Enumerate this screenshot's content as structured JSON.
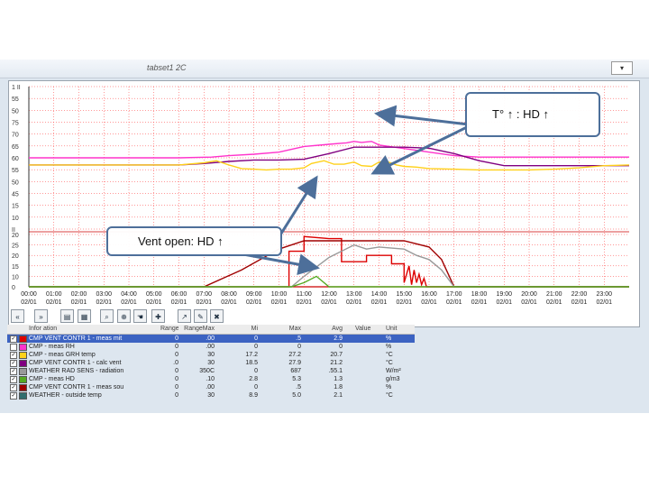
{
  "window": {
    "title": "tabset1 2C",
    "combo_label": ""
  },
  "callouts": {
    "top": "T° ↑ : HD ↑",
    "bottom": "Vent open: HD ↑"
  },
  "colors": {
    "magenta": "#ff33cc",
    "purple": "#800080",
    "yellow": "#ffd11a",
    "red": "#dd0000",
    "darkred": "#a00000",
    "gray": "#999999",
    "green": "#55aa22",
    "grid": "#ff3333",
    "accent": "#3c63c2"
  },
  "chart_data": {
    "type": "line",
    "upper_axis_labels": [
      "1 II",
      "55",
      "50",
      "75",
      "70",
      "65",
      "60",
      "55",
      "50",
      "45",
      "15",
      "10",
      "II"
    ],
    "lower_axis_labels": [
      "20",
      "25",
      "20",
      "15",
      "10",
      "0"
    ],
    "x_time_labels": [
      "00:00",
      "01:00",
      "02:00",
      "03:00",
      "04:00",
      "05:00",
      "06:00",
      "07:00",
      "08:00",
      "09:00",
      "10:00",
      "11:00",
      "12:00",
      "13:00",
      "14:00",
      "15:00",
      "16:00",
      "17:00",
      "18:00",
      "19:00",
      "20:00",
      "21:00",
      "22:00",
      "23:00"
    ],
    "x_date_labels": [
      "02/01",
      "02/01",
      "02/01",
      "02/01",
      "02/01",
      "02/01",
      "02/01",
      "02/01",
      "02/01",
      "02/01",
      "02/01",
      "02/01",
      "02/01",
      "02/01",
      "02/01",
      "02/01",
      "02/01",
      "02/01",
      "02/01",
      "02/01",
      "02/01",
      "02/01",
      "02/01",
      "02/01"
    ],
    "x_range": [
      0,
      24
    ],
    "series": [
      {
        "name": "CMP - meas RH",
        "color": "#ff33cc",
        "panel": "upper",
        "x": [
          0,
          3,
          6,
          7.3,
          8,
          9,
          10,
          11,
          12,
          12.7,
          13,
          13.3,
          13.7,
          14,
          15,
          16,
          17,
          18,
          19,
          20,
          21,
          22,
          23,
          24
        ],
        "y": [
          50,
          50,
          50,
          50.5,
          51.5,
          52.5,
          54,
          58,
          59.5,
          60.5,
          61.5,
          60.8,
          61.5,
          59,
          56.5,
          54,
          51.5,
          50.5,
          50.5,
          50.5,
          50.5,
          50.5,
          50.5,
          50.5
        ]
      },
      {
        "name": "CMP VENT CONTR 1 - calc vent",
        "color": "#800080",
        "panel": "upper",
        "x": [
          0,
          3,
          6,
          7,
          8,
          9,
          10,
          11,
          12,
          13,
          14,
          15,
          16,
          17,
          18,
          19,
          20,
          21,
          22,
          23,
          24
        ],
        "y": [
          45,
          45,
          45,
          46,
          47.5,
          48.5,
          48.5,
          49,
          53,
          57.5,
          57.5,
          57.5,
          56.8,
          53,
          48,
          44.5,
          44.5,
          44.5,
          44.5,
          44.5,
          44.5
        ]
      },
      {
        "name": "CMP - meas GRH temp",
        "color": "#ffd11a",
        "panel": "upper",
        "x": [
          0,
          3,
          6,
          7,
          7.5,
          8,
          8.5,
          9,
          9.5,
          10,
          10.5,
          11,
          11.3,
          11.8,
          12.2,
          12.6,
          13,
          13.3,
          13.7,
          14,
          14.3,
          14.7,
          15,
          15.5,
          16,
          17,
          18,
          19,
          20,
          21,
          22,
          23,
          24
        ],
        "y": [
          45,
          45,
          45,
          46.5,
          48,
          45,
          42.5,
          42,
          41.5,
          42,
          42,
          43,
          46,
          48,
          45.5,
          45.5,
          47,
          44.5,
          44,
          47,
          47.5,
          45,
          44,
          43.5,
          42.5,
          42,
          41.5,
          41.5,
          41.5,
          42,
          43,
          44.5,
          45
        ]
      },
      {
        "name": "CMP VENT CONTR 1 - meas mit",
        "color": "#dd0000",
        "panel": "lower",
        "x": [
          0,
          10.4,
          10.4,
          11,
          11,
          12,
          12.5,
          12.5,
          13.5,
          13.5,
          14.5,
          14.5,
          15,
          15,
          15.2,
          15.3,
          15.4,
          15.5,
          15.6,
          15.7,
          15.8,
          15.9,
          16,
          24
        ],
        "y": [
          0,
          0,
          17,
          17,
          24,
          23,
          23,
          12,
          12,
          15,
          15,
          11,
          11,
          2,
          10,
          1,
          8,
          2,
          6,
          1,
          4,
          0,
          0,
          0
        ]
      },
      {
        "name": "CMP VENT CONTR 1 - meas sou",
        "color": "#a00000",
        "panel": "lower",
        "x": [
          0,
          7,
          8.5,
          10,
          11,
          12,
          13,
          14,
          15,
          16,
          16.5,
          17,
          18,
          24
        ],
        "y": [
          0,
          0,
          8,
          18,
          22,
          22,
          22,
          22,
          22,
          19,
          13,
          0,
          0,
          0
        ]
      },
      {
        "name": "WEATHER RAD SENS - radiation",
        "color": "#999999",
        "panel": "lower",
        "x": [
          0,
          10.5,
          11,
          12,
          13,
          13.5,
          14,
          15,
          15.5,
          16,
          16.5,
          17,
          18,
          24
        ],
        "y": [
          0,
          0,
          5,
          14,
          20,
          18,
          19,
          18,
          15,
          13,
          8,
          0,
          0,
          0
        ]
      },
      {
        "name": "CMP - meas HD",
        "color": "#55aa22",
        "panel": "lower",
        "x": [
          0,
          10.5,
          11,
          11.5,
          12,
          13,
          14,
          15,
          16,
          17,
          24
        ],
        "y": [
          0,
          0,
          2,
          5,
          0,
          0,
          0,
          0,
          0,
          0,
          0
        ]
      }
    ]
  },
  "toolbar": [
    "«",
    "»",
    "chart-icon",
    "grid-icon",
    "zoom-icon",
    "zoom-in-icon",
    "hand-icon",
    "cross-icon",
    "chart-add-icon",
    "chart-edit-icon",
    "chart-delete-icon"
  ],
  "table": {
    "headers": [
      "Infor ation",
      "RangeMin",
      "RangeMax",
      "Mi",
      "Max",
      "Avg",
      "Value",
      "Unit"
    ],
    "rows": [
      {
        "checked": true,
        "selected": true,
        "color": "#dd0000",
        "name": "CMP VENT CONTR 1 - meas mit",
        "rmin": "0",
        "rmax": ".00",
        "min": "0",
        "max": ".5",
        "avg": "2.9",
        "value": "",
        "unit": "%"
      },
      {
        "checked": false,
        "selected": false,
        "color": "#ff33cc",
        "name": "CMP - meas RH",
        "rmin": "0",
        "rmax": ".00",
        "min": "0",
        "max": "0",
        "avg": "0",
        "value": "",
        "unit": "%"
      },
      {
        "checked": true,
        "selected": false,
        "color": "#ffd11a",
        "name": "CMP - meas GRH temp",
        "rmin": "0",
        "rmax": "30",
        "min": "17.2",
        "max": "27.2",
        "avg": "20.7",
        "value": "",
        "unit": "°C"
      },
      {
        "checked": true,
        "selected": false,
        "color": "#800080",
        "name": "CMP VENT CONTR 1 - calc vent",
        "rmin": ".0",
        "rmax": "30",
        "min": "18.5",
        "max": "27.9",
        "avg": "21.2",
        "value": "",
        "unit": "°C"
      },
      {
        "checked": true,
        "selected": false,
        "color": "#999999",
        "name": "WEATHER RAD SENS - radiation",
        "rmin": "0",
        "rmax": "350C",
        "min": "0",
        "max": "687",
        "avg": ".55.1",
        "value": "",
        "unit": "W/m²"
      },
      {
        "checked": true,
        "selected": false,
        "color": "#55aa22",
        "name": "CMP - meas HD",
        "rmin": "0",
        "rmax": ".10",
        "min": "2.8",
        "max": "5.3",
        "avg": "1.3",
        "value": "",
        "unit": "g/m3"
      },
      {
        "checked": true,
        "selected": false,
        "color": "#a00000",
        "name": "CMP VENT CONTR 1 - meas sou",
        "rmin": "0",
        "rmax": ".00",
        "min": "0",
        "max": ".5",
        "avg": "1.8",
        "value": "",
        "unit": "%"
      },
      {
        "checked": true,
        "selected": false,
        "color": "#2f6d6d",
        "name": "WEATHER - outside temp",
        "rmin": "0",
        "rmax": "30",
        "min": "8.9",
        "max": "5.0",
        "avg": "2.1",
        "value": "",
        "unit": "°C"
      }
    ]
  }
}
